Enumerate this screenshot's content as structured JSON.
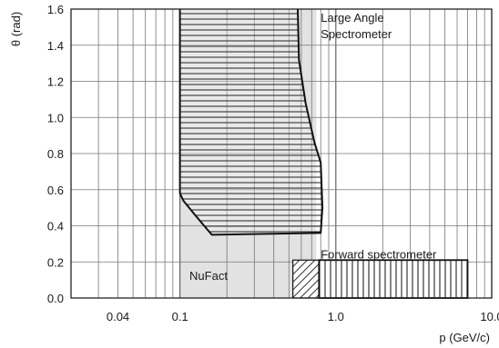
{
  "chart_data": {
    "type": "area",
    "title": "",
    "x_axis": {
      "label": "p (GeV/c)",
      "scale": "log",
      "range": [
        0.02,
        10.0
      ],
      "tick_labels": [
        {
          "value": 0.04,
          "label": "0.04"
        },
        {
          "value": 0.1,
          "label": "0.1"
        },
        {
          "value": 1.0,
          "label": "1.0"
        },
        {
          "value": 10.0,
          "label": "10.0"
        }
      ]
    },
    "y_axis": {
      "label": "θ (rad)",
      "scale": "linear",
      "range": [
        0.0,
        1.6
      ],
      "tick_labels": [
        {
          "value": 0.0,
          "label": "0.0"
        },
        {
          "value": 0.2,
          "label": "0.2"
        },
        {
          "value": 0.4,
          "label": "0.4"
        },
        {
          "value": 0.6,
          "label": "0.6"
        },
        {
          "value": 0.8,
          "label": "0.8"
        },
        {
          "value": 1.0,
          "label": "1.0"
        },
        {
          "value": 1.2,
          "label": "1.2"
        },
        {
          "value": 1.4,
          "label": "1.4"
        },
        {
          "value": 1.6,
          "label": "1.6"
        }
      ]
    },
    "grid": true,
    "regions": [
      {
        "name": "NuFact",
        "label": "NuFact",
        "kind": "shaded",
        "p_range": [
          0.1,
          0.75
        ],
        "theta_range": [
          0.0,
          1.6
        ],
        "color": "#e2e2e2",
        "label_at": {
          "p": 0.115,
          "theta": 0.12
        }
      },
      {
        "name": "Large Angle Spectrometer",
        "label_lines": [
          "Large Angle",
          "Spectrometer"
        ],
        "kind": "horizontal-hatch",
        "label_at": {
          "p": 0.8,
          "theta": 1.55
        },
        "boundary": [
          {
            "p": 0.1,
            "theta": 1.6
          },
          {
            "p": 0.1,
            "theta": 0.58
          },
          {
            "p": 0.105,
            "theta": 0.54
          },
          {
            "p": 0.125,
            "theta": 0.46
          },
          {
            "p": 0.16,
            "theta": 0.35
          },
          {
            "p": 0.8,
            "theta": 0.36
          },
          {
            "p": 0.82,
            "theta": 0.5
          },
          {
            "p": 0.8,
            "theta": 0.75
          },
          {
            "p": 0.73,
            "theta": 0.86
          },
          {
            "p": 0.64,
            "theta": 1.08
          },
          {
            "p": 0.58,
            "theta": 1.32
          },
          {
            "p": 0.57,
            "theta": 1.6
          }
        ]
      },
      {
        "name": "Forward spectrometer",
        "label": "Forward spectrometer",
        "kind": "vertical-hatch",
        "p_range": [
          0.78,
          7.0
        ],
        "theta_range": [
          0.0,
          0.21
        ],
        "label_at": {
          "p": 0.8,
          "theta": 0.24
        }
      },
      {
        "name": "overlap",
        "kind": "diagonal-hatch",
        "p_range": [
          0.53,
          0.78
        ],
        "theta_range": [
          0.0,
          0.21
        ]
      }
    ]
  }
}
